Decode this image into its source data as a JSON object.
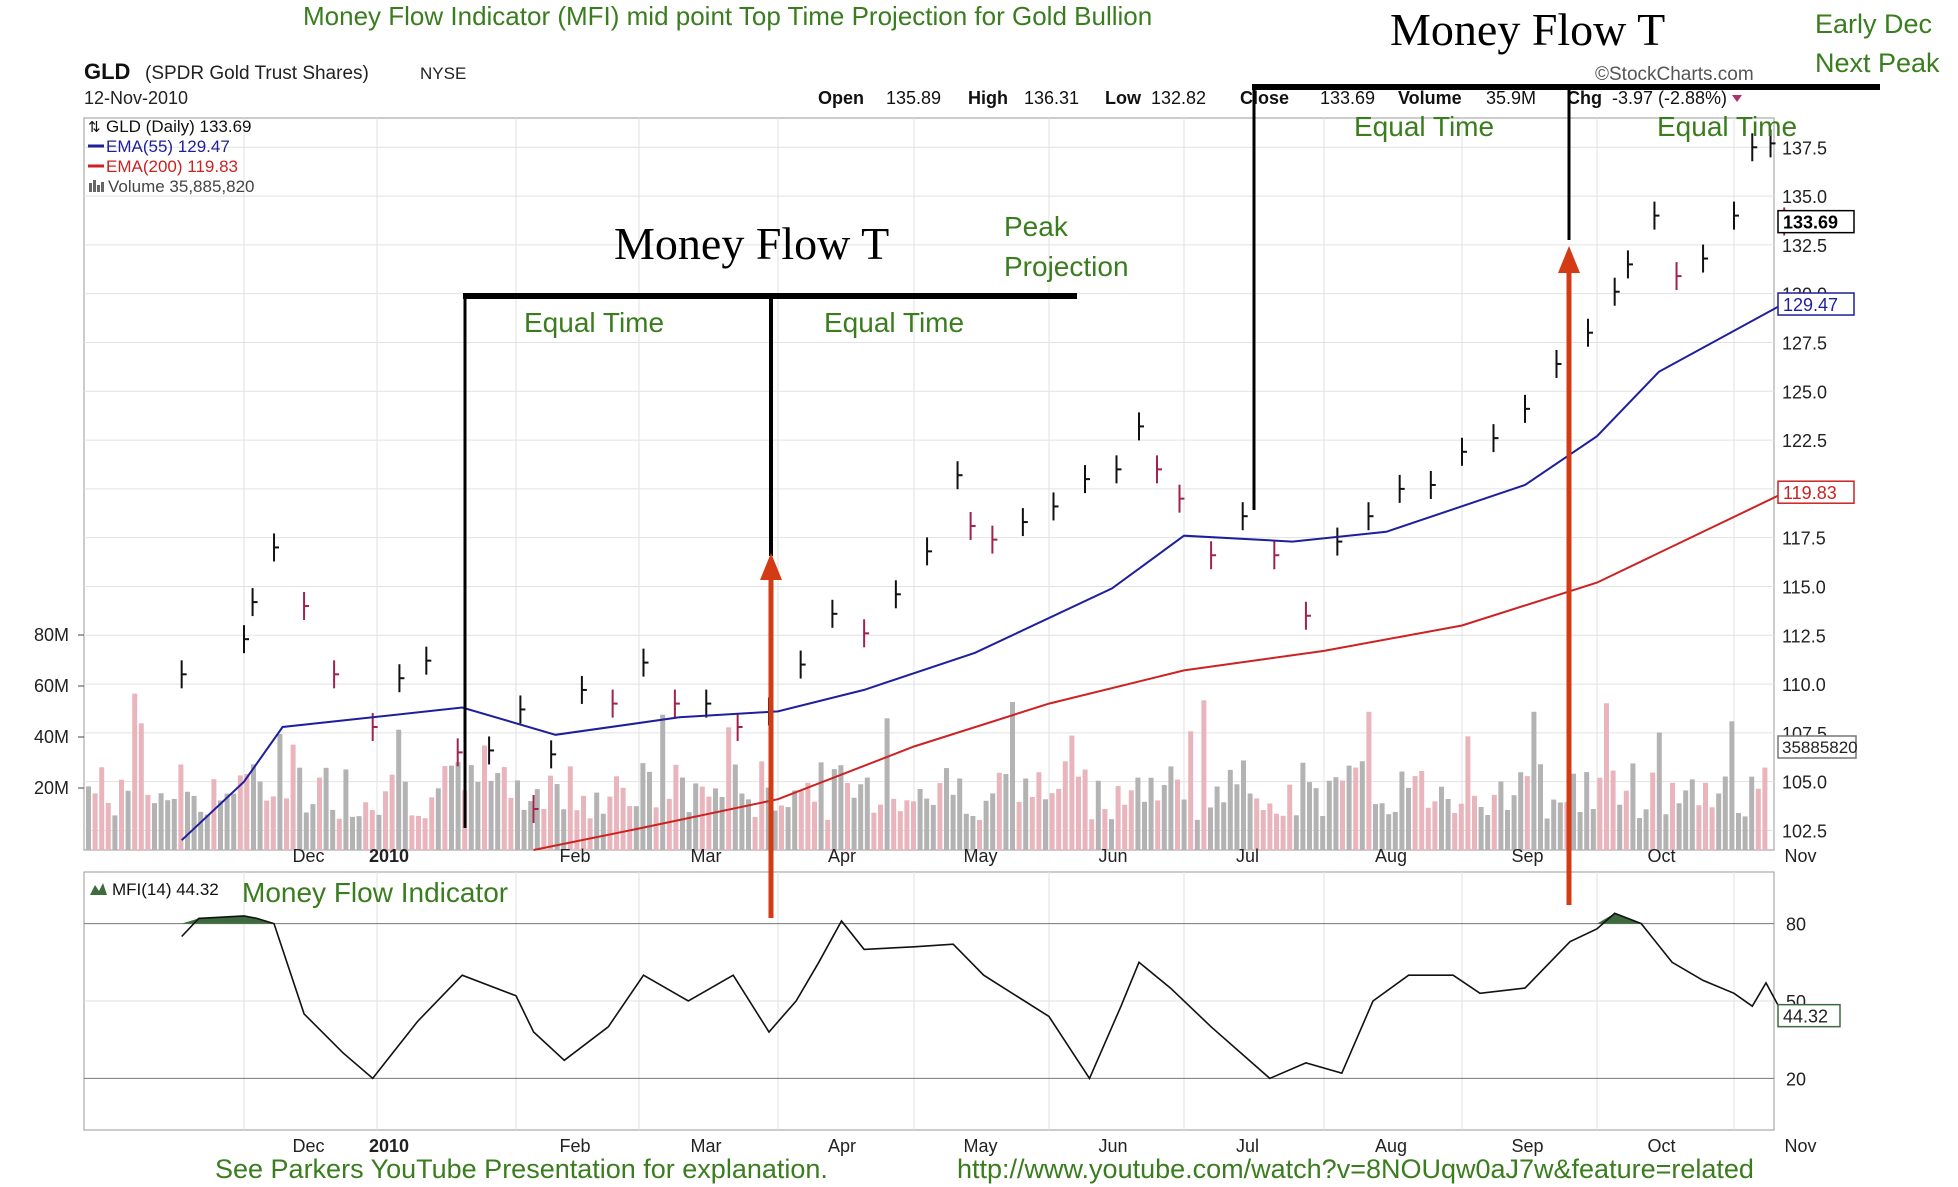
{
  "annotations": {
    "title_top": "Money Flow Indicator (MFI) mid point Top Time Projection for Gold Bullion",
    "money_flow_1": "Money Flow T",
    "money_flow_2": "Money Flow T",
    "equal_time": "Equal Time",
    "peak_projection_1": "Peak",
    "peak_projection_2": "Projection",
    "early_dec_1": "Early Dec",
    "early_dec_2": "Next Peak",
    "mfi_label": "Money Flow Indicator",
    "footer_text": "See Parkers YouTube Presentation for explanation.",
    "footer_url": "http://www.youtube.com/watch?v=8NOUqw0aJ7w&feature=related"
  },
  "header": {
    "symbol": "GLD",
    "name": "(SPDR Gold Trust Shares)",
    "exchange": "NYSE",
    "date": "12-Nov-2010",
    "watermark": "©StockCharts.com",
    "open_label": "Open",
    "open": "135.89",
    "high_label": "High",
    "high": "136.31",
    "low_label": "Low",
    "low": "132.82",
    "close_label": "Close",
    "close": "133.69",
    "volume_label": "Volume",
    "volume": "35.9M",
    "chg_label": "Chg",
    "chg": "-3.97 (-2.88%)"
  },
  "legend": {
    "price": "GLD (Daily) 133.69",
    "ema55": "EMA(55) 129.47",
    "ema200": "EMA(200) 119.83",
    "volume": "Volume 35,885,820",
    "mfi": "MFI(14) 44.32"
  },
  "chart_data": [
    {
      "type": "line",
      "title": "GLD (Daily)",
      "x_tick_labels": [
        "Dec",
        "2010",
        "Feb",
        "Mar",
        "Apr",
        "May",
        "Jun",
        "Jul",
        "Aug",
        "Sep",
        "Oct",
        "Nov"
      ],
      "y_tick_labels": [
        "102.5",
        "105.0",
        "107.5",
        "110.0",
        "112.5",
        "115.0",
        "117.5",
        "120.0",
        "122.5",
        "125.0",
        "127.5",
        "130.0",
        "132.5",
        "135.0",
        "137.5"
      ],
      "ylim": [
        101.5,
        139.0
      ],
      "volume_ticks": [
        "20M",
        "40M",
        "60M",
        "80M"
      ],
      "last_values": {
        "price": "133.69",
        "ema55": "129.47",
        "ema200": "119.83",
        "volume": "35885820"
      },
      "series": [
        {
          "name": "GLD (Daily)",
          "color": "#000000",
          "x": [
            "Nov-20",
            "Dec-01",
            "Dec-03",
            "Dec-08",
            "Dec-15",
            "Dec-22",
            "Dec-31",
            "Jan-06",
            "Jan-12",
            "Jan-19",
            "Jan-26",
            "Feb-02",
            "Feb-05",
            "Feb-09",
            "Feb-16",
            "Feb-23",
            "Mar-02",
            "Mar-09",
            "Mar-16",
            "Mar-23",
            "Mar-30",
            "Apr-06",
            "Apr-13",
            "Apr-20",
            "Apr-27",
            "May-04",
            "May-11",
            "May-14",
            "May-19",
            "May-26",
            "Jun-02",
            "Jun-09",
            "Jun-16",
            "Jun-21",
            "Jun-25",
            "Jun-30",
            "Jul-07",
            "Jul-14",
            "Jul-21",
            "Jul-28",
            "Aug-04",
            "Aug-11",
            "Aug-18",
            "Aug-25",
            "Sep-01",
            "Sep-08",
            "Sep-15",
            "Sep-22",
            "Sep-29",
            "Oct-05",
            "Oct-08",
            "Oct-14",
            "Oct-19",
            "Oct-25",
            "Nov-01",
            "Nov-05",
            "Nov-09",
            "Nov-12"
          ],
          "y": [
            110.5,
            112.3,
            114.2,
            117.0,
            114.0,
            110.5,
            107.8,
            110.3,
            111.2,
            106.5,
            106.6,
            108.7,
            103.6,
            106.4,
            109.7,
            109.0,
            111.1,
            109.0,
            109.0,
            107.8,
            108.6,
            111.0,
            113.6,
            112.6,
            114.6,
            116.8,
            120.7,
            118.1,
            117.4,
            118.3,
            119.1,
            120.5,
            121.0,
            123.2,
            121.0,
            119.5,
            116.6,
            118.6,
            116.6,
            113.5,
            117.3,
            118.6,
            120.0,
            120.2,
            121.9,
            122.6,
            124.1,
            126.4,
            128.0,
            130.1,
            131.5,
            134.0,
            130.9,
            131.8,
            134.0,
            137.5,
            137.7,
            133.7
          ]
        },
        {
          "name": "EMA(55)",
          "color": "#1f1f9c",
          "x": [
            "Nov-20",
            "Dec-01",
            "Dec-10",
            "Dec-31",
            "Jan-20",
            "Feb-10",
            "Mar-10",
            "Apr-01",
            "Apr-20",
            "May-15",
            "Jun-15",
            "Jul-01",
            "Jul-25",
            "Aug-15",
            "Sep-15",
            "Oct-01",
            "Oct-15",
            "Nov-12"
          ],
          "y": [
            102.0,
            105.0,
            107.8,
            108.3,
            108.8,
            107.4,
            108.3,
            108.6,
            109.7,
            111.6,
            114.9,
            117.6,
            117.3,
            117.8,
            120.2,
            122.7,
            126.0,
            129.5
          ]
        },
        {
          "name": "EMA(200)",
          "color": "#cc2222",
          "x": [
            "Feb-05",
            "Mar-01",
            "Apr-01",
            "May-01",
            "Jun-01",
            "Jul-01",
            "Aug-01",
            "Sep-01",
            "Oct-01",
            "Nov-12"
          ],
          "y": [
            101.5,
            102.6,
            104.1,
            106.8,
            109.0,
            110.7,
            111.7,
            113.0,
            115.2,
            119.8
          ]
        }
      ]
    },
    {
      "type": "line",
      "title": "MFI(14)",
      "series_name": "MFI(14)",
      "y_tick_labels": [
        "20",
        "50",
        "80"
      ],
      "ylim": [
        0,
        100
      ],
      "last_value": "44.32",
      "x": [
        "Nov-20",
        "Nov-23",
        "Dec-01",
        "Dec-04",
        "Dec-08",
        "Dec-15",
        "Dec-24",
        "Dec-31",
        "Jan-10",
        "Jan-20",
        "Feb-01",
        "Feb-05",
        "Feb-12",
        "Feb-22",
        "Mar-02",
        "Mar-12",
        "Mar-22",
        "Mar-30",
        "Apr-05",
        "Apr-10",
        "Apr-15",
        "Apr-20",
        "May-01",
        "May-10",
        "May-17",
        "Jun-01",
        "Jun-10",
        "Jun-17",
        "Jun-21",
        "Jun-28",
        "Jul-07",
        "Jul-20",
        "Jul-28",
        "Aug-05",
        "Aug-12",
        "Aug-20",
        "Aug-30",
        "Sep-05",
        "Sep-15",
        "Sep-25",
        "Oct-01",
        "Oct-05",
        "Oct-11",
        "Oct-18",
        "Oct-25",
        "Nov-01",
        "Nov-05",
        "Nov-08",
        "Nov-12"
      ],
      "y": [
        75,
        82,
        83,
        82,
        80,
        45,
        30,
        20,
        42,
        60,
        52,
        38,
        27,
        40,
        60,
        50,
        60,
        38,
        50,
        65,
        81,
        70,
        71,
        72,
        60,
        44,
        20,
        48,
        65,
        55,
        40,
        20,
        26,
        22,
        50,
        60,
        60,
        53,
        55,
        73,
        78,
        84,
        80,
        65,
        58,
        53,
        48,
        57,
        44
      ]
    }
  ],
  "colors": {
    "ema55": "#1f1f9c",
    "ema200": "#cc2222",
    "annotation_green": "#3a7d1e",
    "arrow_red": "#d23b14",
    "vol_up": "#b3b3b3",
    "vol_down": "#e9b5bc",
    "mfi_fill": "#3d6b3d"
  }
}
